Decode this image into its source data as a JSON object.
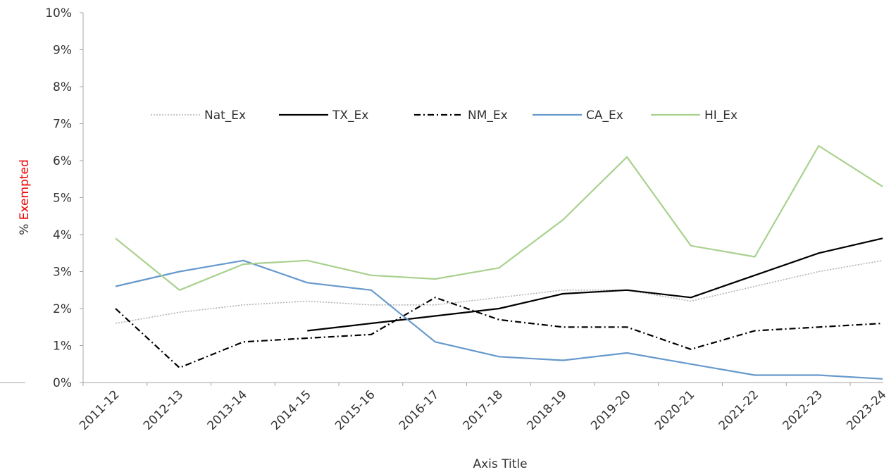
{
  "chart_data": {
    "type": "line",
    "xlabel": "Axis Title",
    "ylabel_prefix": "% ",
    "ylabel_main": "Exempted",
    "ylabel_main_color": "#ee0000",
    "ylim": [
      0,
      10
    ],
    "yticks": [
      "0%",
      "1%",
      "2%",
      "3%",
      "4%",
      "5%",
      "6%",
      "7%",
      "8%",
      "9%",
      "10%"
    ],
    "grid": false,
    "legend_position": "upper-middle",
    "categories": [
      "2011-12",
      "2012-13",
      "2013-14",
      "2014-15",
      "2015-16",
      "2016-17",
      "2017-18",
      "2018-19",
      "2019-20",
      "2020-21",
      "2021-22",
      "2022-23",
      "2023-24"
    ],
    "series": [
      {
        "name": "Nat_Ex",
        "color": "#b3b3b3",
        "style": "dotted",
        "values": [
          1.6,
          1.9,
          2.1,
          2.2,
          2.1,
          2.1,
          2.3,
          2.5,
          2.5,
          2.2,
          2.6,
          3.0,
          3.3
        ]
      },
      {
        "name": "TX_Ex",
        "color": "#000000",
        "style": "solid",
        "values": [
          null,
          null,
          null,
          1.4,
          1.6,
          1.8,
          2.0,
          2.4,
          2.5,
          2.3,
          2.9,
          3.5,
          3.9
        ]
      },
      {
        "name": "NM_Ex",
        "color": "#000000",
        "style": "dashdot",
        "values": [
          2.0,
          0.4,
          1.1,
          1.2,
          1.3,
          2.3,
          1.7,
          1.5,
          1.5,
          0.9,
          1.4,
          1.5,
          1.6
        ]
      },
      {
        "name": "CA_Ex",
        "color": "#6699cc",
        "style": "solid",
        "values": [
          2.6,
          3.0,
          3.3,
          2.7,
          2.5,
          1.1,
          0.7,
          0.6,
          0.8,
          0.5,
          0.2,
          0.2,
          0.1
        ]
      },
      {
        "name": "HI_Ex",
        "color": "#a9d18e",
        "style": "solid",
        "values": [
          3.9,
          2.5,
          3.2,
          3.3,
          2.9,
          2.8,
          3.1,
          4.4,
          6.1,
          3.7,
          3.4,
          6.4,
          5.3
        ]
      }
    ]
  }
}
